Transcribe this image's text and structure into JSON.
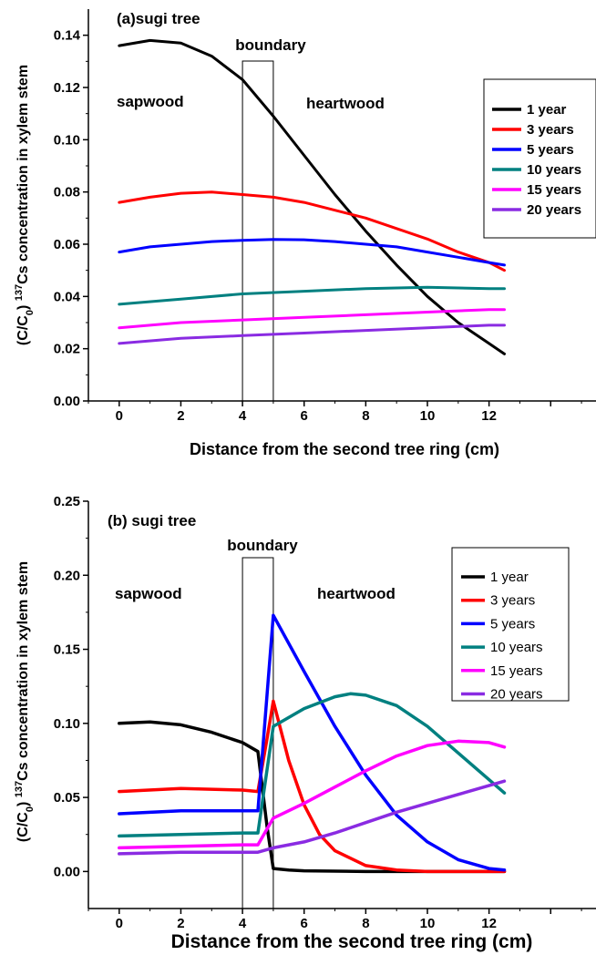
{
  "colors": {
    "1 year": "#000000",
    "3 years": "#ff0000",
    "5 years": "#0000ff",
    "10 years": "#008080",
    "15 years": "#ff00ff",
    "20 years": "#8a2be2"
  },
  "chart_data": [
    {
      "type": "line",
      "title": "(a)sugi tree",
      "xlabel": "Distance from the second tree ring (cm)",
      "ylabel_parts": [
        "(C/C",
        "0",
        ")  ",
        "137",
        "Cs concentration in xylem stem"
      ],
      "xlim": [
        -1,
        15.5
      ],
      "ylim": [
        0,
        0.15
      ],
      "xticks": [
        0,
        2,
        4,
        6,
        8,
        10,
        12
      ],
      "yticks": [
        0.0,
        0.02,
        0.04,
        0.06,
        0.08,
        0.1,
        0.12,
        0.14
      ],
      "ytick_labels": [
        "0.00",
        "0.02",
        "0.04",
        "0.06",
        "0.08",
        "0.10",
        "0.12",
        "0.14"
      ],
      "boundary": {
        "label": "boundary",
        "x0": 4,
        "x1": 5
      },
      "region_labels": {
        "left": "sapwood",
        "right": "heartwood"
      },
      "legend_position": "right",
      "series": [
        {
          "name": "1 year",
          "x": [
            0,
            1,
            2,
            3,
            4,
            5,
            6,
            7,
            8,
            9,
            10,
            11,
            12,
            12.5
          ],
          "y": [
            0.136,
            0.138,
            0.137,
            0.132,
            0.123,
            0.109,
            0.094,
            0.079,
            0.065,
            0.052,
            0.04,
            0.03,
            0.022,
            0.018
          ]
        },
        {
          "name": "3 years",
          "x": [
            0,
            1,
            2,
            3,
            4,
            5,
            6,
            7,
            8,
            9,
            10,
            11,
            12,
            12.5
          ],
          "y": [
            0.076,
            0.078,
            0.0795,
            0.08,
            0.079,
            0.078,
            0.076,
            0.073,
            0.07,
            0.066,
            0.062,
            0.057,
            0.053,
            0.05
          ]
        },
        {
          "name": "5 years",
          "x": [
            0,
            1,
            2,
            3,
            4,
            5,
            6,
            7,
            8,
            9,
            10,
            11,
            12,
            12.5
          ],
          "y": [
            0.057,
            0.059,
            0.06,
            0.061,
            0.0615,
            0.0618,
            0.0617,
            0.061,
            0.06,
            0.059,
            0.057,
            0.055,
            0.053,
            0.052
          ]
        },
        {
          "name": "10 years",
          "x": [
            0,
            2,
            4,
            6,
            8,
            10,
            12,
            12.5
          ],
          "y": [
            0.037,
            0.039,
            0.041,
            0.042,
            0.043,
            0.0435,
            0.043,
            0.043
          ]
        },
        {
          "name": "15 years",
          "x": [
            0,
            2,
            4,
            6,
            8,
            10,
            12,
            12.5
          ],
          "y": [
            0.028,
            0.03,
            0.031,
            0.032,
            0.033,
            0.034,
            0.035,
            0.035
          ]
        },
        {
          "name": "20 years",
          "x": [
            0,
            2,
            4,
            6,
            8,
            10,
            12,
            12.5
          ],
          "y": [
            0.022,
            0.024,
            0.025,
            0.026,
            0.027,
            0.028,
            0.029,
            0.029
          ]
        }
      ]
    },
    {
      "type": "line",
      "title": "(b) sugi tree",
      "xlabel": "Distance from the second tree ring (cm)",
      "ylabel_parts": [
        "(C/C",
        "0",
        ")  ",
        "137",
        "Cs concentration in xylem stem"
      ],
      "xlim": [
        -1,
        15.5
      ],
      "ylim": [
        -0.025,
        0.25
      ],
      "xticks": [
        0,
        2,
        4,
        6,
        8,
        10,
        12
      ],
      "yticks": [
        0.0,
        0.05,
        0.1,
        0.15,
        0.2,
        0.25
      ],
      "ytick_labels": [
        "0.00",
        "0.05",
        "0.10",
        "0.15",
        "0.20",
        "0.25"
      ],
      "boundary": {
        "label": "boundary",
        "x0": 4,
        "x1": 5
      },
      "region_labels": {
        "left": "sapwood",
        "right": "heartwood"
      },
      "legend_position": "right",
      "series": [
        {
          "name": "1 year",
          "x": [
            0,
            1,
            2,
            3,
            4,
            4.5,
            4.8,
            5,
            5.5,
            6,
            8,
            10,
            12,
            12.5
          ],
          "y": [
            0.1,
            0.101,
            0.099,
            0.094,
            0.087,
            0.081,
            0.03,
            0.002,
            0.001,
            0.0005,
            0.0,
            0.0,
            0.0,
            0.0
          ]
        },
        {
          "name": "3 years",
          "x": [
            0,
            2,
            4,
            4.5,
            4.8,
            5.0,
            5.5,
            6,
            6.5,
            7,
            8,
            9,
            10,
            12,
            12.5
          ],
          "y": [
            0.054,
            0.056,
            0.055,
            0.054,
            0.09,
            0.115,
            0.075,
            0.045,
            0.025,
            0.014,
            0.004,
            0.001,
            0.0,
            0.0,
            0.0
          ]
        },
        {
          "name": "5 years",
          "x": [
            0,
            2,
            4,
            4.5,
            5.0,
            6,
            7,
            8,
            9,
            10,
            11,
            12,
            12.5
          ],
          "y": [
            0.039,
            0.041,
            0.041,
            0.041,
            0.173,
            0.135,
            0.098,
            0.065,
            0.038,
            0.02,
            0.008,
            0.002,
            0.001
          ]
        },
        {
          "name": "10 years",
          "x": [
            0,
            2,
            4,
            4.5,
            5,
            6,
            7,
            7.5,
            8,
            9,
            10,
            11,
            12,
            12.5
          ],
          "y": [
            0.024,
            0.025,
            0.026,
            0.026,
            0.098,
            0.11,
            0.118,
            0.12,
            0.119,
            0.112,
            0.098,
            0.08,
            0.062,
            0.053
          ]
        },
        {
          "name": "15 years",
          "x": [
            0,
            2,
            4,
            4.5,
            5,
            6,
            7,
            8,
            9,
            10,
            11,
            12,
            12.5
          ],
          "y": [
            0.016,
            0.017,
            0.018,
            0.018,
            0.036,
            0.046,
            0.057,
            0.068,
            0.078,
            0.085,
            0.088,
            0.087,
            0.084
          ]
        },
        {
          "name": "20 years",
          "x": [
            0,
            2,
            4,
            4.5,
            5,
            6,
            7,
            8,
            9,
            10,
            11,
            12,
            12.5
          ],
          "y": [
            0.012,
            0.013,
            0.013,
            0.013,
            0.016,
            0.02,
            0.026,
            0.033,
            0.04,
            0.046,
            0.052,
            0.058,
            0.061
          ]
        }
      ]
    }
  ]
}
